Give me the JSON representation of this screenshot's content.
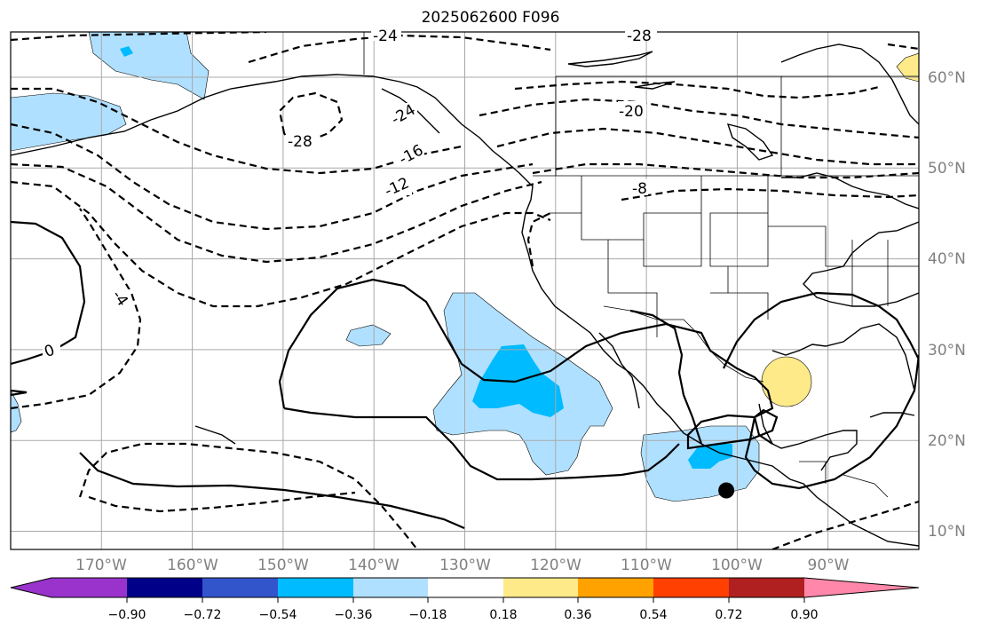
{
  "title": "2025062600 F096",
  "map": {
    "projection": "PlateCarree",
    "extent": {
      "lon_min": -180,
      "lon_max": -80,
      "lat_min": 8,
      "lat_max": 65
    },
    "lat_ticks": [
      {
        "value": 10,
        "label": "10°N"
      },
      {
        "value": 20,
        "label": "20°N"
      },
      {
        "value": 30,
        "label": "30°N"
      },
      {
        "value": 40,
        "label": "40°N"
      },
      {
        "value": 50,
        "label": "50°N"
      },
      {
        "value": 60,
        "label": "60°N"
      }
    ],
    "lon_ticks": [
      {
        "value": -170,
        "label": "170°W"
      },
      {
        "value": -160,
        "label": "160°W"
      },
      {
        "value": -150,
        "label": "150°W"
      },
      {
        "value": -140,
        "label": "140°W"
      },
      {
        "value": -130,
        "label": "130°W"
      },
      {
        "value": -120,
        "label": "120°W"
      },
      {
        "value": -110,
        "label": "110°W"
      },
      {
        "value": -100,
        "label": "100°W"
      },
      {
        "value": -90,
        "label": "90°W"
      }
    ],
    "grid": true,
    "contour_labels": [
      "-24",
      "-28",
      "-28",
      "-24",
      "-20",
      "-16",
      "-12",
      "-8",
      "-4",
      "0"
    ],
    "marker": {
      "type": "storm-center-dot",
      "lon": -101.2,
      "lat": 14.5,
      "color": "#000000"
    }
  },
  "colorbar": {
    "colors": [
      "#9933cc",
      "#000088",
      "#3355cc",
      "#00bbff",
      "#b0e0ff",
      "#ffffff",
      "#ffea8a",
      "#ffa200",
      "#ff4000",
      "#b02020",
      "#ff88aa"
    ],
    "tick_labels": [
      "−0.90",
      "−0.72",
      "−0.54",
      "−0.36",
      "−0.18",
      "0.18",
      "0.36",
      "0.54",
      "0.72",
      "0.90"
    ],
    "extend": "both"
  }
}
